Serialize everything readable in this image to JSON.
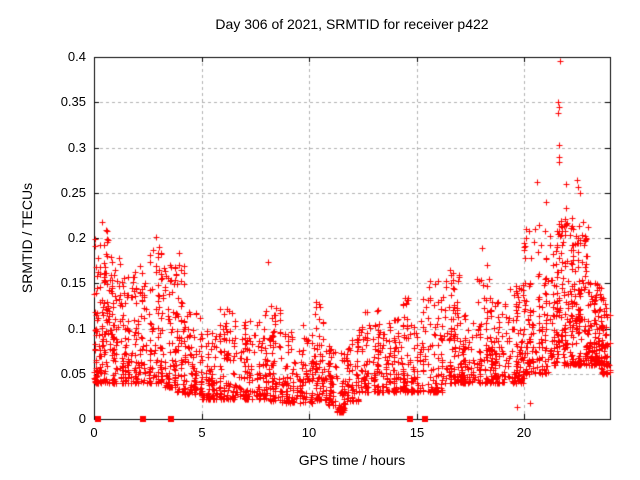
{
  "chart_data": {
    "type": "scatter",
    "title": "Day 306 of 2021, SRMTID for receiver p422",
    "xlabel": "GPS time / hours",
    "ylabel": "SRMTID / TECUs",
    "xlim": [
      0,
      24
    ],
    "ylim": [
      0,
      0.4
    ],
    "xticks": {
      "values": [
        0,
        5,
        10,
        15,
        20
      ],
      "labels": [
        "0",
        "5",
        "10",
        "15",
        "20"
      ]
    },
    "yticks": {
      "values": [
        0,
        0.05,
        0.1,
        0.15,
        0.2,
        0.25,
        0.3,
        0.35,
        0.4
      ],
      "labels": [
        "0",
        "0.05",
        "0.1",
        "0.15",
        "0.2",
        "0.25",
        "0.3",
        "0.35",
        "0.4"
      ]
    },
    "grid": true,
    "legend": "none",
    "colors": {
      "marker": "#ff0000",
      "grid": "#b0b0b0",
      "axis": "#000000",
      "text": "#000000"
    },
    "marker": "plus",
    "seed": 42,
    "series": [
      {
        "name": "srmtid-points",
        "marker": "plus",
        "density_bins_comment": "each bin: [t_start_h, t_end_h, n_points, v_min, v_max, skew_exponent]",
        "density_bins": [
          [
            0.0,
            0.3,
            60,
            0.04,
            0.2,
            2.0
          ],
          [
            0.3,
            0.7,
            70,
            0.04,
            0.21,
            1.9
          ],
          [
            0.7,
            1.2,
            70,
            0.04,
            0.18,
            2.0
          ],
          [
            1.2,
            1.8,
            70,
            0.04,
            0.16,
            2.0
          ],
          [
            1.8,
            2.4,
            70,
            0.04,
            0.17,
            2.0
          ],
          [
            2.4,
            3.2,
            90,
            0.04,
            0.19,
            2.0
          ],
          [
            3.2,
            3.8,
            70,
            0.035,
            0.17,
            2.0
          ],
          [
            3.8,
            4.2,
            50,
            0.03,
            0.18,
            2.0
          ],
          [
            4.2,
            5.0,
            80,
            0.028,
            0.12,
            2.0
          ],
          [
            5.0,
            5.6,
            70,
            0.022,
            0.1,
            2.0
          ],
          [
            5.6,
            6.4,
            80,
            0.022,
            0.125,
            2.0
          ],
          [
            6.4,
            7.2,
            80,
            0.022,
            0.11,
            2.0
          ],
          [
            7.2,
            8.0,
            80,
            0.022,
            0.12,
            2.0
          ],
          [
            8.0,
            8.7,
            70,
            0.02,
            0.125,
            2.0
          ],
          [
            8.7,
            9.5,
            70,
            0.018,
            0.1,
            2.0
          ],
          [
            9.5,
            10.2,
            70,
            0.018,
            0.105,
            2.0
          ],
          [
            10.2,
            10.7,
            60,
            0.02,
            0.13,
            2.0
          ],
          [
            10.7,
            11.2,
            60,
            0.015,
            0.09,
            2.0
          ],
          [
            11.2,
            11.7,
            45,
            0.008,
            0.075,
            1.8
          ],
          [
            11.7,
            12.3,
            60,
            0.02,
            0.09,
            2.0
          ],
          [
            12.3,
            13.2,
            80,
            0.03,
            0.125,
            2.0
          ],
          [
            13.2,
            14.0,
            80,
            0.03,
            0.11,
            2.0
          ],
          [
            14.0,
            14.7,
            70,
            0.03,
            0.135,
            2.0
          ],
          [
            14.7,
            15.3,
            60,
            0.03,
            0.11,
            2.0
          ],
          [
            15.3,
            16.3,
            80,
            0.03,
            0.155,
            2.0
          ],
          [
            16.3,
            17.0,
            80,
            0.04,
            0.165,
            2.0
          ],
          [
            17.0,
            17.8,
            80,
            0.04,
            0.12,
            2.0
          ],
          [
            17.8,
            18.5,
            80,
            0.04,
            0.155,
            2.0
          ],
          [
            18.5,
            19.3,
            80,
            0.04,
            0.13,
            2.0
          ],
          [
            19.3,
            20.0,
            80,
            0.04,
            0.15,
            2.0
          ],
          [
            20.0,
            20.6,
            70,
            0.05,
            0.21,
            1.8
          ],
          [
            20.6,
            21.2,
            70,
            0.05,
            0.22,
            1.7
          ],
          [
            21.2,
            21.6,
            60,
            0.06,
            0.22,
            1.7
          ],
          [
            21.6,
            21.8,
            35,
            0.08,
            0.24,
            1.3
          ],
          [
            21.8,
            22.3,
            90,
            0.06,
            0.24,
            1.7
          ],
          [
            22.3,
            23.0,
            120,
            0.06,
            0.22,
            1.9
          ],
          [
            23.0,
            23.6,
            110,
            0.06,
            0.15,
            2.0
          ],
          [
            23.6,
            24.0,
            60,
            0.05,
            0.14,
            2.0
          ]
        ],
        "outliers": [
          [
            0.35,
            0.218
          ],
          [
            0.55,
            0.209
          ],
          [
            0.6,
            0.199
          ],
          [
            2.9,
            0.201
          ],
          [
            3.0,
            0.19
          ],
          [
            3.95,
            0.183
          ],
          [
            3.97,
            0.17
          ],
          [
            8.1,
            0.173
          ],
          [
            16.55,
            0.165
          ],
          [
            18.05,
            0.189
          ],
          [
            18.3,
            0.17
          ],
          [
            18.35,
            0.155
          ],
          [
            19.67,
            0.013
          ],
          [
            20.3,
            0.018
          ],
          [
            20.5,
            0.21
          ],
          [
            20.62,
            0.262
          ],
          [
            21.0,
            0.24
          ],
          [
            21.67,
            0.396
          ],
          [
            21.6,
            0.35
          ],
          [
            21.63,
            0.345
          ],
          [
            21.58,
            0.338
          ],
          [
            21.63,
            0.303
          ],
          [
            21.62,
            0.29
          ],
          [
            21.64,
            0.284
          ],
          [
            21.95,
            0.26
          ],
          [
            22.45,
            0.264
          ],
          [
            22.52,
            0.256
          ],
          [
            22.6,
            0.25
          ]
        ]
      },
      {
        "name": "flag-markers",
        "marker": "filled-square",
        "points": [
          [
            0.2,
            0
          ],
          [
            2.3,
            0
          ],
          [
            3.6,
            0
          ],
          [
            14.7,
            0
          ],
          [
            15.4,
            0
          ]
        ]
      }
    ]
  }
}
